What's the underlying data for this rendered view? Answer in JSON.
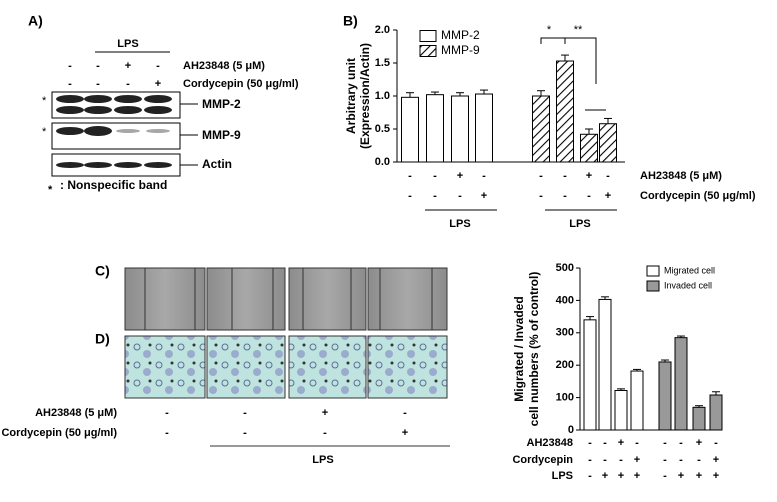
{
  "panels": {
    "a": {
      "label": "A)",
      "lps": "LPS",
      "rows": [
        {
          "label": "AH23848 (5 μM)",
          "signs": [
            "-",
            "-",
            "+",
            "-"
          ]
        },
        {
          "label": "Cordycepin (50 μg/ml)",
          "signs": [
            "-",
            "-",
            "-",
            "+"
          ]
        }
      ],
      "bands": [
        {
          "name": "MMP-2",
          "asterisk": "*"
        },
        {
          "name": "MMP-9",
          "asterisk": "*"
        },
        {
          "name": "Actin"
        }
      ],
      "footnote_mark": "*",
      "footnote": ": Nonspecific band"
    },
    "b_label": "B)",
    "c_label": "C)",
    "d_label": "D)",
    "d": {
      "lps": "LPS",
      "rows": [
        {
          "label": "AH23848 (5 μM)",
          "signs": [
            "-",
            "-",
            "+",
            "-"
          ]
        },
        {
          "label": "Cordycepin (50 μg/ml)",
          "signs": [
            "-",
            "-",
            "-",
            "+"
          ]
        }
      ]
    }
  },
  "chart_data": [
    {
      "type": "bar",
      "ylabel": [
        "Arbitrary unit",
        "(Expression/Actin)"
      ],
      "ylim": [
        0,
        2.0
      ],
      "yticks": [
        {
          "value": 0,
          "label": "0.0"
        },
        {
          "value": 0.5,
          "label": "0.5"
        },
        {
          "value": 1.0,
          "label": "1.0"
        },
        {
          "value": 1.5,
          "label": "1.5"
        },
        {
          "value": 2.0,
          "label": "2.0"
        }
      ],
      "series": [
        {
          "name": "MMP-2",
          "color": "#ffffff",
          "hatch": false,
          "values": [
            0.98,
            1.02,
            1.0,
            1.03
          ],
          "errors": [
            0.07,
            0.04,
            0.05,
            0.06
          ]
        },
        {
          "name": "MMP-9",
          "color": "#ffffff",
          "hatch": true,
          "values": [
            1.0,
            1.53,
            0.42,
            0.58
          ],
          "errors": [
            0.08,
            0.09,
            0.08,
            0.08
          ]
        }
      ],
      "rows": [
        {
          "label": "AH23848 (5 μM)",
          "signs": [
            "-",
            "-",
            "+",
            "-",
            "-",
            "-",
            "+",
            "-"
          ]
        },
        {
          "label": "Cordycepin (50 μg/ml)",
          "signs": [
            "-",
            "-",
            "-",
            "+",
            "-",
            "-",
            "-",
            "+"
          ]
        }
      ],
      "group_labels": [
        "LPS",
        "LPS"
      ],
      "annotations": [
        "*",
        "**"
      ]
    },
    {
      "type": "bar",
      "ylabel": [
        "Migrated / Invaded",
        "cell numbers (% of control)"
      ],
      "ylim": [
        0,
        500
      ],
      "yticks": [
        0,
        100,
        200,
        300,
        400,
        500
      ],
      "series": [
        {
          "name": "Migrated cell",
          "color": "#ffffff",
          "hatch": false,
          "values": [
            340,
            403,
            122,
            182
          ],
          "errors": [
            10,
            8,
            5,
            5
          ]
        },
        {
          "name": "Invaded cell",
          "color": "#999999",
          "hatch": false,
          "values": [
            210,
            285,
            70,
            108
          ],
          "errors": [
            6,
            5,
            5,
            10
          ]
        }
      ],
      "rows": [
        {
          "label": "AH23848",
          "signs": [
            "-",
            "-",
            "+",
            "-",
            "-",
            "-",
            "+",
            "-"
          ]
        },
        {
          "label": "Cordycepin",
          "signs": [
            "-",
            "-",
            "-",
            "+",
            "-",
            "-",
            "-",
            "+"
          ]
        },
        {
          "label": "LPS",
          "signs": [
            "-",
            "+",
            "+",
            "+",
            "-",
            "+",
            "+",
            "+"
          ]
        }
      ]
    }
  ]
}
